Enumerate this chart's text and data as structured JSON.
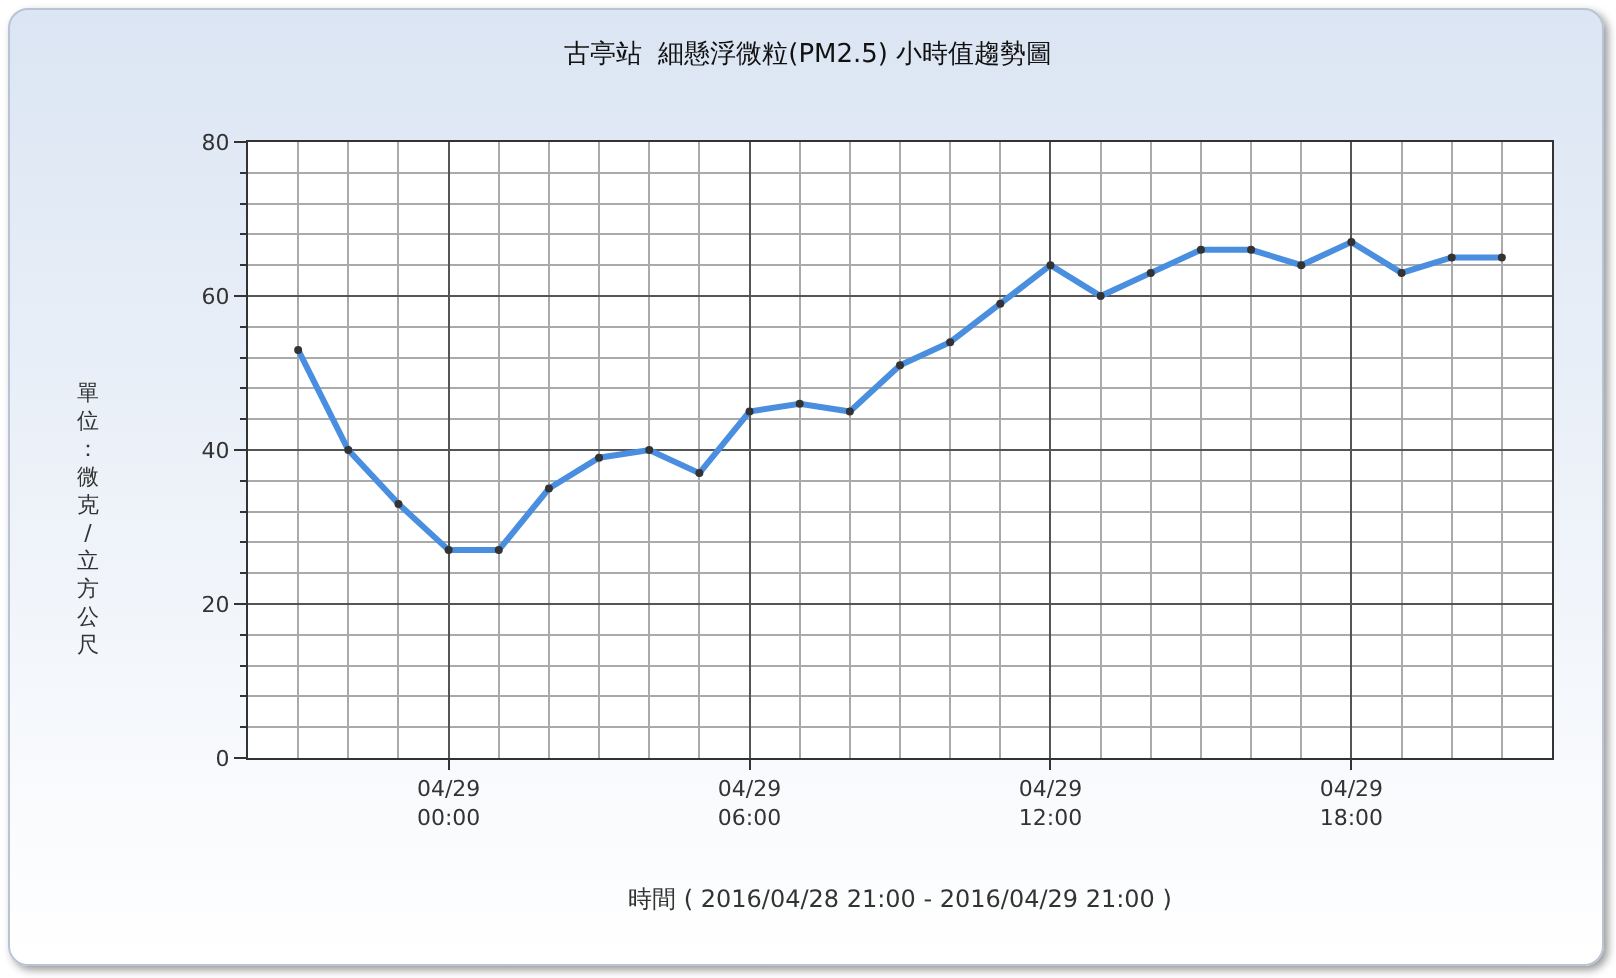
{
  "chart_data": {
    "type": "line",
    "title": "古亭站  細懸浮微粒(PM2.5) 小時值趨勢圖",
    "xlabel": "時間 ( 2016/04/28 21:00 - 2016/04/29 21:00 )",
    "ylabel": "單位：微克/立方公尺",
    "x": [
      "2016-04-28T21:00",
      "2016-04-28T22:00",
      "2016-04-28T23:00",
      "2016-04-29T00:00",
      "2016-04-29T01:00",
      "2016-04-29T02:00",
      "2016-04-29T03:00",
      "2016-04-29T04:00",
      "2016-04-29T05:00",
      "2016-04-29T06:00",
      "2016-04-29T07:00",
      "2016-04-29T08:00",
      "2016-04-29T09:00",
      "2016-04-29T10:00",
      "2016-04-29T11:00",
      "2016-04-29T12:00",
      "2016-04-29T13:00",
      "2016-04-29T14:00",
      "2016-04-29T15:00",
      "2016-04-29T16:00",
      "2016-04-29T17:00",
      "2016-04-29T18:00",
      "2016-04-29T19:00",
      "2016-04-29T20:00",
      "2016-04-29T21:00"
    ],
    "series": [
      {
        "color": "#4a8ee0",
        "values": [
          53,
          40,
          33,
          27,
          27,
          35,
          39,
          40,
          37,
          45,
          46,
          45,
          51,
          54,
          59,
          64,
          60,
          63,
          66,
          66,
          64,
          67,
          63,
          65,
          65
        ]
      }
    ],
    "xlim": [
      "2016-04-28T20:00",
      "2016-04-29T22:00"
    ],
    "xticks": [
      {
        "value": "2016-04-29T00:00",
        "label": "04/29\n00:00"
      },
      {
        "value": "2016-04-29T06:00",
        "label": "04/29\n06:00"
      },
      {
        "value": "2016-04-29T12:00",
        "label": "04/29\n12:00"
      },
      {
        "value": "2016-04-29T18:00",
        "label": "04/29\n18:00"
      }
    ],
    "ylim": [
      0,
      80
    ],
    "yticks": [
      0,
      20,
      40,
      60,
      80
    ],
    "grid": true,
    "marker": "circle",
    "line_style": "solid"
  }
}
